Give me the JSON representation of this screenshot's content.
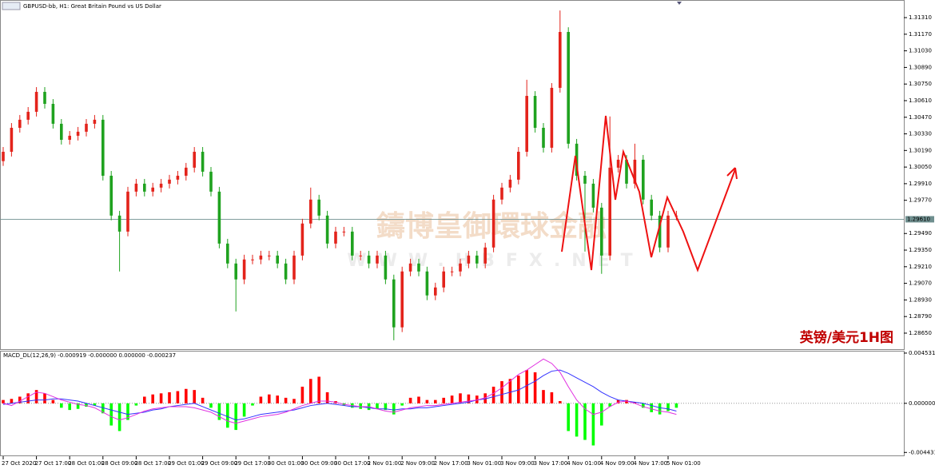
{
  "chart_data": [
    {
      "type": "candlestick",
      "title": "GBPUSD-bb, H1:  Great Britain Pound vs US Dollar",
      "categories": [
        "27 Oct 2020",
        null,
        null,
        null,
        "27 Oct 17:00",
        null,
        null,
        null,
        "28 Oct 01:00",
        null,
        null,
        null,
        "28 Oct 09:00",
        null,
        null,
        null,
        "28 Oct 17:00",
        null,
        null,
        null,
        "29 Oct 01:00",
        null,
        null,
        null,
        "29 Oct 09:00",
        null,
        null,
        null,
        "29 Oct 17:00",
        null,
        null,
        null,
        "30 Oct 01:00",
        null,
        null,
        null,
        "30 Oct 09:00",
        null,
        null,
        null,
        "30 Oct 17:00",
        null,
        null,
        null,
        "2 Nov 01:00",
        null,
        null,
        null,
        "2 Nov 09:00",
        null,
        null,
        null,
        "2 Nov 17:00",
        null,
        null,
        null,
        "3 Nov 01:00",
        null,
        null,
        null,
        "3 Nov 09:00",
        null,
        null,
        null,
        "3 Nov 17:00",
        null,
        null,
        null,
        "4 Nov 01:00",
        null,
        null,
        null,
        "4 Nov 09:00",
        null,
        null,
        null,
        "4 Nov 17:00",
        null,
        null,
        null,
        "5 Nov 01:00",
        null
      ],
      "open": [
        1.301,
        1.30179,
        1.30381,
        1.30449,
        1.30516,
        1.30684,
        1.30583,
        1.30415,
        1.3028,
        1.30314,
        1.30348,
        1.30415,
        1.30449,
        1.29977,
        1.29641,
        1.29506,
        1.29843,
        1.2991,
        1.29843,
        1.29877,
        1.2991,
        1.29944,
        1.29977,
        1.30045,
        1.30179,
        1.30011,
        1.29843,
        1.29405,
        1.29237,
        1.29103,
        1.29271,
        1.29271,
        1.29304,
        1.29304,
        1.29237,
        1.29103,
        1.29304,
        1.29574,
        1.29776,
        1.29641,
        1.29405,
        1.29506,
        1.29506,
        1.29304,
        1.29304,
        1.29237,
        1.29304,
        1.29103,
        1.28699,
        1.2917,
        1.29237,
        1.2917,
        1.28968,
        1.29035,
        1.2917,
        1.2917,
        1.29237,
        1.29304,
        1.29237,
        1.29372,
        1.29776,
        1.29877,
        1.29944,
        1.30179,
        1.3065,
        1.30381,
        1.30213,
        1.30718,
        1.31189,
        1.30247,
        1.29977,
        1.2991,
        1.29708,
        1.29304,
        1.30045,
        1.30112,
        1.2991,
        1.30112,
        1.29776,
        1.29641,
        1.29372,
        1.29641
      ],
      "high": [
        1.30219,
        1.30421,
        1.30489,
        1.30556,
        1.30724,
        1.30724,
        1.30623,
        1.30455,
        1.30354,
        1.30388,
        1.30455,
        1.30489,
        1.30489,
        1.30017,
        1.29681,
        1.29883,
        1.2995,
        1.2995,
        1.29917,
        1.2995,
        1.29984,
        1.30017,
        1.30085,
        1.30219,
        1.30219,
        1.30051,
        1.29883,
        1.29445,
        1.29277,
        1.29311,
        1.29311,
        1.29344,
        1.29344,
        1.29344,
        1.29277,
        1.29344,
        1.29614,
        1.29877,
        1.29816,
        1.29681,
        1.29546,
        1.29546,
        1.29546,
        1.29344,
        1.29344,
        1.29344,
        1.29344,
        1.29143,
        1.2921,
        1.29277,
        1.29277,
        1.2921,
        1.29075,
        1.2921,
        1.2921,
        1.29277,
        1.29344,
        1.29344,
        1.29412,
        1.29816,
        1.29917,
        1.29984,
        1.30219,
        1.30786,
        1.3069,
        1.30421,
        1.30758,
        1.3137,
        1.31229,
        1.30287,
        1.30017,
        1.2995,
        1.29748,
        1.30477,
        1.30152,
        1.30152,
        1.30247,
        1.30152,
        1.29816,
        1.29681,
        1.29681,
        1.29681
      ],
      "low": [
        1.3006,
        1.30139,
        1.30341,
        1.30409,
        1.30476,
        1.30543,
        1.30375,
        1.3024,
        1.3024,
        1.30274,
        1.30308,
        1.30375,
        1.29937,
        1.29601,
        1.2917,
        1.29466,
        1.29803,
        1.29803,
        1.29803,
        1.29837,
        1.2987,
        1.29904,
        1.29937,
        1.30005,
        1.29971,
        1.29803,
        1.29365,
        1.29197,
        1.28833,
        1.29063,
        1.29231,
        1.29231,
        1.29264,
        1.29197,
        1.29063,
        1.29063,
        1.29264,
        1.29534,
        1.29601,
        1.29365,
        1.29365,
        1.29466,
        1.29264,
        1.29264,
        1.29197,
        1.29197,
        1.29063,
        1.2859,
        1.28659,
        1.2913,
        1.2913,
        1.28928,
        1.28928,
        1.28995,
        1.2913,
        1.2913,
        1.29197,
        1.29197,
        1.29197,
        1.29332,
        1.29736,
        1.29837,
        1.29904,
        1.30139,
        1.30341,
        1.30173,
        1.30173,
        1.30678,
        1.30207,
        1.29937,
        1.29338,
        1.29668,
        1.2915,
        1.29264,
        1.30005,
        1.2987,
        1.2987,
        1.29736,
        1.29601,
        1.29332,
        1.29332,
        1.29601
      ],
      "close": [
        1.30179,
        1.30381,
        1.30449,
        1.30516,
        1.30684,
        1.30583,
        1.30415,
        1.3028,
        1.30314,
        1.30348,
        1.30415,
        1.30449,
        1.29977,
        1.29641,
        1.29506,
        1.29843,
        1.2991,
        1.29843,
        1.29877,
        1.2991,
        1.29944,
        1.29977,
        1.30045,
        1.30179,
        1.30011,
        1.29843,
        1.29405,
        1.29237,
        1.29103,
        1.29271,
        1.29271,
        1.29304,
        1.29304,
        1.29237,
        1.29103,
        1.29304,
        1.29574,
        1.29776,
        1.29641,
        1.29405,
        1.29506,
        1.29506,
        1.29304,
        1.29304,
        1.29237,
        1.29304,
        1.29103,
        1.28699,
        1.2917,
        1.29237,
        1.2917,
        1.28968,
        1.29035,
        1.2917,
        1.2917,
        1.29237,
        1.29304,
        1.29237,
        1.29372,
        1.29776,
        1.29877,
        1.29944,
        1.30179,
        1.3065,
        1.30381,
        1.30213,
        1.30718,
        1.31189,
        1.30247,
        1.29977,
        1.2991,
        1.29708,
        1.29304,
        1.30045,
        1.30112,
        1.2991,
        1.30112,
        1.29776,
        1.29641,
        1.29372,
        1.29641,
        1.29641
      ],
      "up_color": "#e3231b",
      "down_color": "#1fa21f",
      "ylim": [
        1.28515,
        1.31445
      ],
      "yticks": [
        {
          "value": 1.3131,
          "label": "1.31310"
        },
        {
          "value": 1.3117,
          "label": "1.31170"
        },
        {
          "value": 1.3103,
          "label": "1.31030"
        },
        {
          "value": 1.3089,
          "label": "1.30890"
        },
        {
          "value": 1.3075,
          "label": "1.30750"
        },
        {
          "value": 1.3061,
          "label": "1.30610"
        },
        {
          "value": 1.3047,
          "label": "1.30470"
        },
        {
          "value": 1.3033,
          "label": "1.30330"
        },
        {
          "value": 1.3019,
          "label": "1.30190"
        },
        {
          "value": 1.3005,
          "label": "1.30050"
        },
        {
          "value": 1.2991,
          "label": "1.29910"
        },
        {
          "value": 1.2977,
          "label": "1.29770"
        },
        {
          "value": 1.2949,
          "label": "1.29490"
        },
        {
          "value": 1.2935,
          "label": "1.29350"
        },
        {
          "value": 1.2921,
          "label": "1.29210"
        },
        {
          "value": 1.2907,
          "label": "1.29070"
        },
        {
          "value": 1.2893,
          "label": "1.28930"
        },
        {
          "value": 1.2879,
          "label": "1.28790"
        },
        {
          "value": 1.2865,
          "label": "1.28650"
        }
      ],
      "current_price": {
        "value": 1.2961,
        "label": "1.29610"
      },
      "watermark": "鑄博皇御環球金融",
      "watermark_url": "WWW.HBFX.NET",
      "caption": "英镑/美元1H图"
    },
    {
      "type": "macd",
      "title": "MACD_DL(12,26,9) -0.000919 -0.000000 0.000000 -0.000237",
      "histogram": [
        0.0003,
        0.0004,
        0.0006,
        0.0009,
        0.0012,
        0.0009,
        0.0003,
        -0.0004,
        -0.0006,
        -0.0005,
        -0.0003,
        -0.0002,
        -0.0009,
        -0.002,
        -0.0025,
        -0.0015,
        -0.0002,
        0.0006,
        0.0008,
        0.0009,
        0.001,
        0.0011,
        0.0013,
        0.0012,
        0.0005,
        -0.0004,
        -0.0015,
        -0.0022,
        -0.0024,
        -0.0012,
        -0.0002,
        0.0006,
        0.0008,
        0.0007,
        0.0005,
        0.0004,
        0.0015,
        0.0022,
        0.0024,
        0.001,
        0.0002,
        -0.0002,
        -0.0004,
        -0.0005,
        -0.0006,
        -0.0005,
        -0.0006,
        -0.001,
        -0.0002,
        0.0005,
        0.0006,
        0.0003,
        0.0003,
        0.0005,
        0.0007,
        0.0009,
        0.0008,
        0.0007,
        0.0009,
        0.0015,
        0.002,
        0.0022,
        0.0025,
        0.003,
        0.0028,
        0.0012,
        0.001,
        0.0002,
        -0.0025,
        -0.003,
        -0.0033,
        -0.0038,
        -0.002,
        -0.0003,
        0.0003,
        0.0003,
        0.0001,
        -0.0004,
        -0.0008,
        -0.001,
        -0.0007,
        -0.0004
      ],
      "pos_color": "#ff0000",
      "neg_color": "#00ff00",
      "series": [
        {
          "color": "#3333ff",
          "values": [
            -0.0001,
            0,
            0.0001,
            0.0002,
            0.0003,
            0.0003,
            0.0004,
            0.0004,
            0.0003,
            0.0002,
            0,
            -0.0002,
            -0.0004,
            -0.0006,
            -0.0008,
            -0.001,
            -0.0009,
            -0.0008,
            -0.0006,
            -0.0005,
            -0.0003,
            -0.0002,
            -0.0001,
            0,
            -0.0003,
            -0.0006,
            -0.0009,
            -0.0012,
            -0.0015,
            -0.0014,
            -0.0012,
            -0.001,
            -0.0009,
            -0.0008,
            -0.0007,
            -0.0006,
            -0.0004,
            -0.0002,
            -0.0001,
            0,
            -0.0001,
            -0.0002,
            -0.0003,
            -0.0003,
            -0.0004,
            -0.0005,
            -0.0005,
            -0.0006,
            -0.0005,
            -0.0005,
            -0.0004,
            -0.0004,
            -0.0003,
            -0.0002,
            -0.0001,
            0,
            0.0001,
            0.0003,
            0.0004,
            0.0006,
            0.0008,
            0.001,
            0.0012,
            0.0016,
            0.002,
            0.0025,
            0.0029,
            0.003,
            0.0027,
            0.0023,
            0.0019,
            0.0015,
            0.001,
            0.0006,
            0.0003,
            0.0002,
            0.0001,
            0,
            -0.0002,
            -0.0004,
            -0.0005,
            -0.0007
          ]
        },
        {
          "color": "#e030e0",
          "values": [
            0,
            -0.0002,
            0.0002,
            0.0006,
            0.001,
            0.0009,
            0.0006,
            0.0003,
            0.0001,
            -0.0001,
            -0.0002,
            -0.0004,
            -0.0008,
            -0.0012,
            -0.0015,
            -0.0013,
            -0.001,
            -0.0007,
            -0.0005,
            -0.0004,
            -0.0003,
            -0.0003,
            -0.0003,
            -0.0004,
            -0.0006,
            -0.0008,
            -0.0012,
            -0.0016,
            -0.0018,
            -0.0016,
            -0.0014,
            -0.0012,
            -0.0011,
            -0.001,
            -0.0008,
            -0.0005,
            -0.0002,
            0,
            0.0002,
            0.0002,
            0.0001,
            -0.0001,
            -0.0002,
            -0.0003,
            -0.0003,
            -0.0005,
            -0.0007,
            -0.0008,
            -0.0006,
            -0.0004,
            -0.0003,
            -0.0002,
            -0.0002,
            -0.0001,
            0,
            0.0001,
            0.0002,
            0.0003,
            0.0005,
            0.0009,
            0.0014,
            0.002,
            0.0026,
            0.003,
            0.0035,
            0.004,
            0.0036,
            0.0028,
            0.0015,
            0.0003,
            -0.0005,
            -0.001,
            -0.0008,
            -0.0003,
            0.0001,
            0.0002,
            0,
            -0.0003,
            -0.0005,
            -0.0007,
            -0.0008,
            -0.001
          ]
        }
      ],
      "ylim": [
        -0.0047,
        0.00467
      ],
      "yticks": [
        0.004531,
        {
          "value": 0,
          "label": "0.000000"
        },
        -0.004431
      ]
    }
  ]
}
